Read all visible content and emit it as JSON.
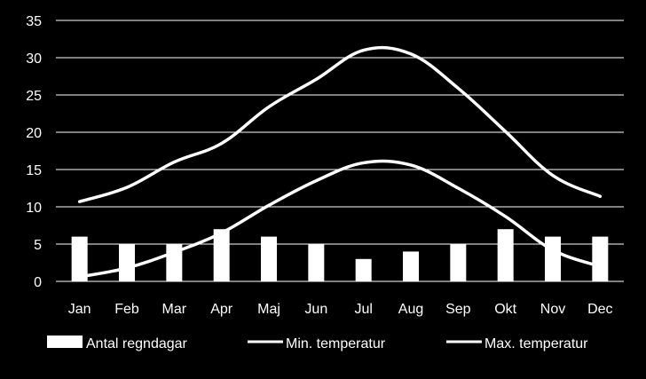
{
  "chart_data": {
    "type": "bar",
    "categories": [
      "Jan",
      "Feb",
      "Mar",
      "Apr",
      "Maj",
      "Jun",
      "Jul",
      "Aug",
      "Sep",
      "Okt",
      "Nov",
      "Dec"
    ],
    "series": [
      {
        "name": "Antal regndagar",
        "type": "bar",
        "values": [
          6,
          5,
          5,
          7,
          6,
          5,
          3,
          4,
          5,
          7,
          6,
          6
        ]
      },
      {
        "name": "Min. temperatur",
        "type": "line",
        "values": [
          0.6,
          1.8,
          3.9,
          6.5,
          10.2,
          13.5,
          15.9,
          15.6,
          12.5,
          8.7,
          4.2,
          2.0
        ]
      },
      {
        "name": "Max. temperatur",
        "type": "line",
        "values": [
          10.7,
          12.6,
          16.0,
          18.5,
          23.4,
          27.1,
          31.0,
          30.5,
          25.9,
          20.1,
          14.2,
          11.4
        ]
      }
    ],
    "yticks": [
      "0",
      "5",
      "10",
      "15",
      "20",
      "25",
      "30",
      "35"
    ],
    "ylim": [
      0,
      35
    ],
    "grid": true,
    "legend_position": "bottom",
    "colors": {
      "background": "#000000",
      "foreground": "#ffffff",
      "grid": "#ffffff"
    }
  }
}
